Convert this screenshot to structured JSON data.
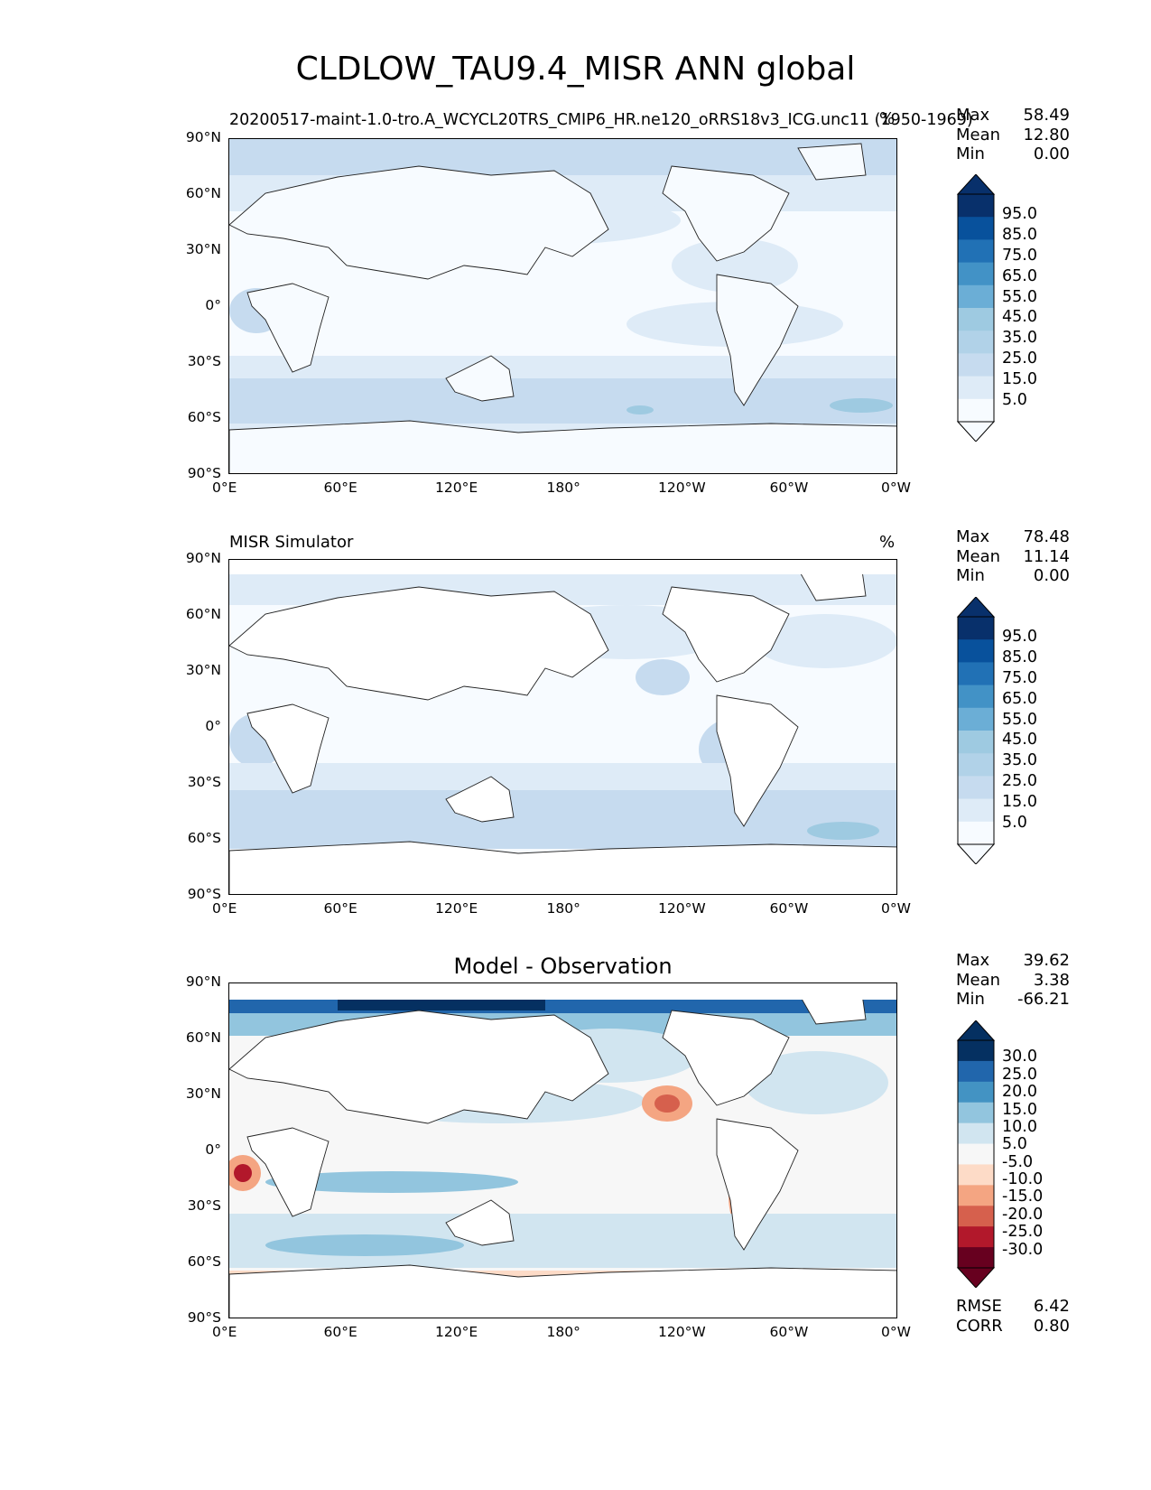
{
  "figure": {
    "title": "CLDLOW_TAU9.4_MISR ANN global"
  },
  "axes": {
    "x_ticks": [
      "0°E",
      "60°E",
      "120°E",
      "180°",
      "120°W",
      "60°W",
      "0°W"
    ],
    "y_ticks": [
      "90°N",
      "60°N",
      "30°N",
      "0°",
      "30°S",
      "60°S",
      "90°S"
    ]
  },
  "panels": [
    {
      "left_title": "20200517-maint-1.0-tro.A_WCYCL20TRS_CMIP6_HR.ne120_oRRS18v3_ICG.unc11 (1950-1969)",
      "units": "%",
      "stats": {
        "max_label": "Max",
        "max": "58.49",
        "mean_label": "Mean",
        "mean": "12.80",
        "min_label": "Min",
        "min": "0.00"
      },
      "colorbar": {
        "labels": [
          "95.0",
          "85.0",
          "75.0",
          "65.0",
          "55.0",
          "45.0",
          "35.0",
          "25.0",
          "15.0",
          "5.0"
        ],
        "colors": [
          "#08306b",
          "#08519c",
          "#2171b5",
          "#4292c6",
          "#6baed6",
          "#9ecae1",
          "#b1d2e8",
          "#c6dbef",
          "#deebf7",
          "#f7fbff"
        ]
      }
    },
    {
      "left_title": "MISR Simulator",
      "units": "%",
      "stats": {
        "max_label": "Max",
        "max": "78.48",
        "mean_label": "Mean",
        "mean": "11.14",
        "min_label": "Min",
        "min": "0.00"
      },
      "colorbar": {
        "labels": [
          "95.0",
          "85.0",
          "75.0",
          "65.0",
          "55.0",
          "45.0",
          "35.0",
          "25.0",
          "15.0",
          "5.0"
        ],
        "colors": [
          "#08306b",
          "#08519c",
          "#2171b5",
          "#4292c6",
          "#6baed6",
          "#9ecae1",
          "#b1d2e8",
          "#c6dbef",
          "#deebf7",
          "#f7fbff"
        ]
      }
    },
    {
      "center_title": "Model - Observation",
      "stats": {
        "max_label": "Max",
        "max": "39.62",
        "mean_label": "Mean",
        "mean": "3.38",
        "min_label": "Min",
        "min": "-66.21"
      },
      "colorbar": {
        "labels": [
          "30.0",
          "25.0",
          "20.0",
          "15.0",
          "10.0",
          "5.0",
          "-5.0",
          "-10.0",
          "-15.0",
          "-20.0",
          "-25.0",
          "-30.0"
        ],
        "colors": [
          "#053061",
          "#2166ac",
          "#4393c3",
          "#92c5de",
          "#d1e5f0",
          "#f7f7f7",
          "#fddbc7",
          "#f4a582",
          "#d6604d",
          "#b2182b",
          "#67001f"
        ]
      },
      "metrics": {
        "rmse_label": "RMSE",
        "rmse": "6.42",
        "corr_label": "CORR",
        "corr": "0.80"
      }
    }
  ]
}
